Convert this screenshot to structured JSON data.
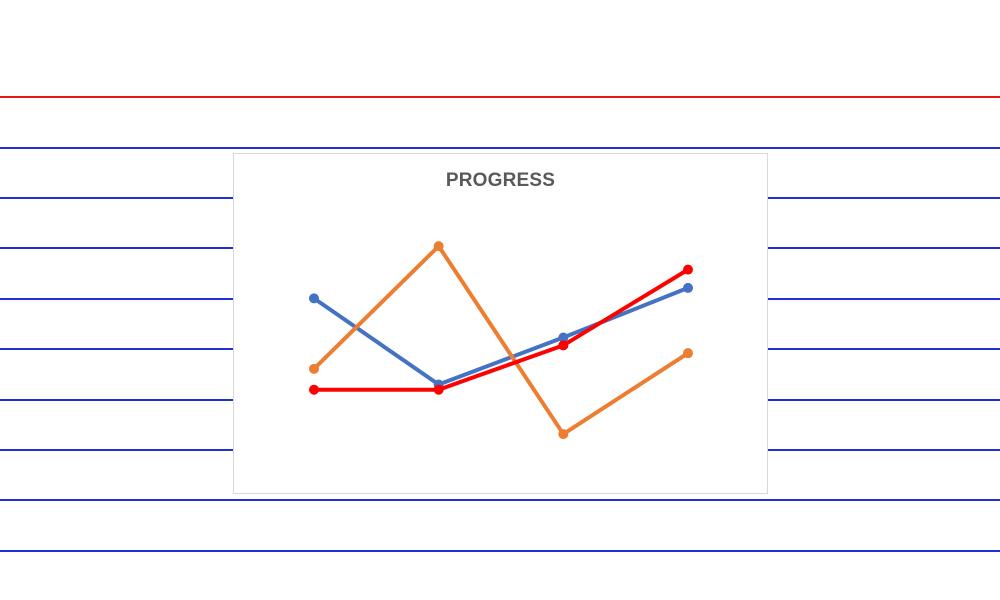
{
  "page": {
    "rule_colors": {
      "top": "#e8161b",
      "lines": "#1f2fd6"
    }
  },
  "chart_data": {
    "type": "line",
    "title": "PROGRESS",
    "xlabel": "",
    "ylabel": "",
    "categories": [
      "",
      "",
      "",
      ""
    ],
    "ylim": [
      0,
      10
    ],
    "grid": false,
    "legend": "none",
    "series": [
      {
        "color": "#4472c4",
        "values": [
          6.5,
          3.2,
          5.0,
          6.9
        ]
      },
      {
        "color": "#ed7d31",
        "values": [
          3.8,
          8.5,
          1.3,
          4.4
        ]
      },
      {
        "color": "#ff0000",
        "values": [
          3.0,
          3.0,
          4.7,
          7.6
        ]
      }
    ]
  }
}
